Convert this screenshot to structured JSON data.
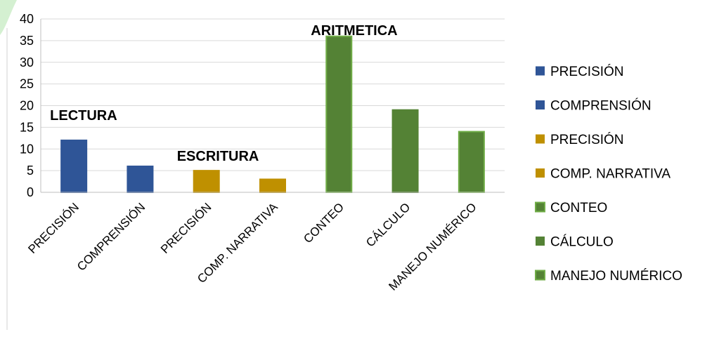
{
  "chart_data": {
    "type": "bar",
    "categories": [
      "PRECISIÓN",
      "COMPRENSIÓN",
      "PRECISIÓN",
      "COMP.  NARRATIVA",
      "CONTEO",
      "CÁLCULO",
      "MANEJO NUMÉRICO"
    ],
    "values": [
      12,
      6,
      5,
      3,
      36,
      19,
      14
    ],
    "bar_colors": [
      "#2F5597",
      "#2F5597",
      "#BF9000",
      "#BF9000",
      "#548235",
      "#548235",
      "#548235"
    ],
    "bar_border_colors": [
      "#2F5597",
      "#2F5597",
      "#BF9000",
      "#BF9000",
      "#70AD47",
      "#548235",
      "#70AD47"
    ],
    "ylim": [
      0,
      40
    ],
    "yticks": [
      0,
      5,
      10,
      15,
      20,
      25,
      30,
      35,
      40
    ],
    "grid": true,
    "legend": {
      "placement": "right",
      "entries": [
        {
          "label": "PRECISIÓN",
          "color": "#2F5597"
        },
        {
          "label": "COMPRENSIÓN",
          "color": "#2F5597"
        },
        {
          "label": "PRECISIÓN",
          "color": "#BF9000"
        },
        {
          "label": "COMP.  NARRATIVA",
          "color": "#BF9000"
        },
        {
          "label": "CONTEO",
          "color": "#548235",
          "border": "#70AD47"
        },
        {
          "label": "CÁLCULO",
          "color": "#548235"
        },
        {
          "label": "MANEJO NUMÉRICO",
          "color": "#548235",
          "border": "#70AD47"
        }
      ]
    },
    "annotations": [
      {
        "text": "LECTURA",
        "category_index": 0
      },
      {
        "text": "ESCRITURA",
        "category_index": 2
      },
      {
        "text": "ARITMETICA",
        "category_index": 4
      }
    ],
    "title": "",
    "xlabel": "",
    "ylabel": ""
  }
}
